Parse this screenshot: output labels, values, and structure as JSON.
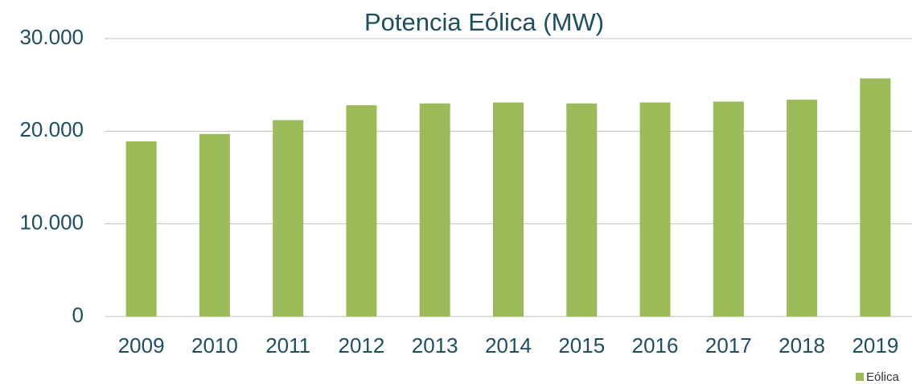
{
  "chart_data": {
    "type": "bar",
    "title": "Potencia Eólica  (MW)",
    "categories": [
      "2009",
      "2010",
      "2011",
      "2012",
      "2013",
      "2014",
      "2015",
      "2016",
      "2017",
      "2018",
      "2019"
    ],
    "series": [
      {
        "name": "Eólica",
        "color": "#9bbb59",
        "values": [
          18900,
          19700,
          21200,
          22800,
          23000,
          23100,
          23000,
          23100,
          23200,
          23400,
          25700
        ]
      }
    ],
    "ylim": [
      0,
      30000
    ],
    "yticks": [
      0,
      {
        "value": 10000,
        "label": "10.000"
      },
      {
        "value": 20000,
        "label": "20.000"
      },
      {
        "value": 30000,
        "label": "30.000"
      }
    ],
    "grid": true,
    "legend": "bottom-right"
  }
}
